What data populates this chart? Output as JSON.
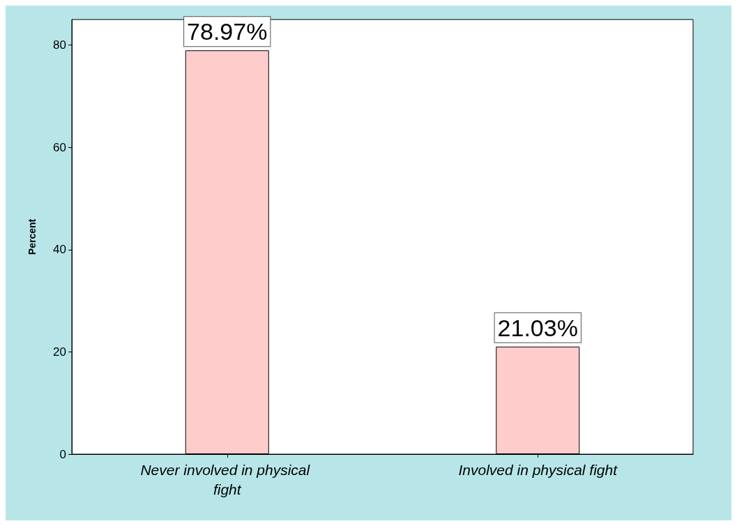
{
  "chart_data": {
    "type": "bar",
    "ylabel": "Percent",
    "categories": [
      "Never involved in physical fight",
      "Involved in physical fight"
    ],
    "values": [
      78.97,
      21.03
    ],
    "value_labels": [
      "78.97%",
      "21.03%"
    ],
    "color": "#ffcccc",
    "ylim": [
      0,
      85
    ],
    "yticks": [
      0,
      20,
      40,
      60,
      80
    ],
    "grid": false
  }
}
